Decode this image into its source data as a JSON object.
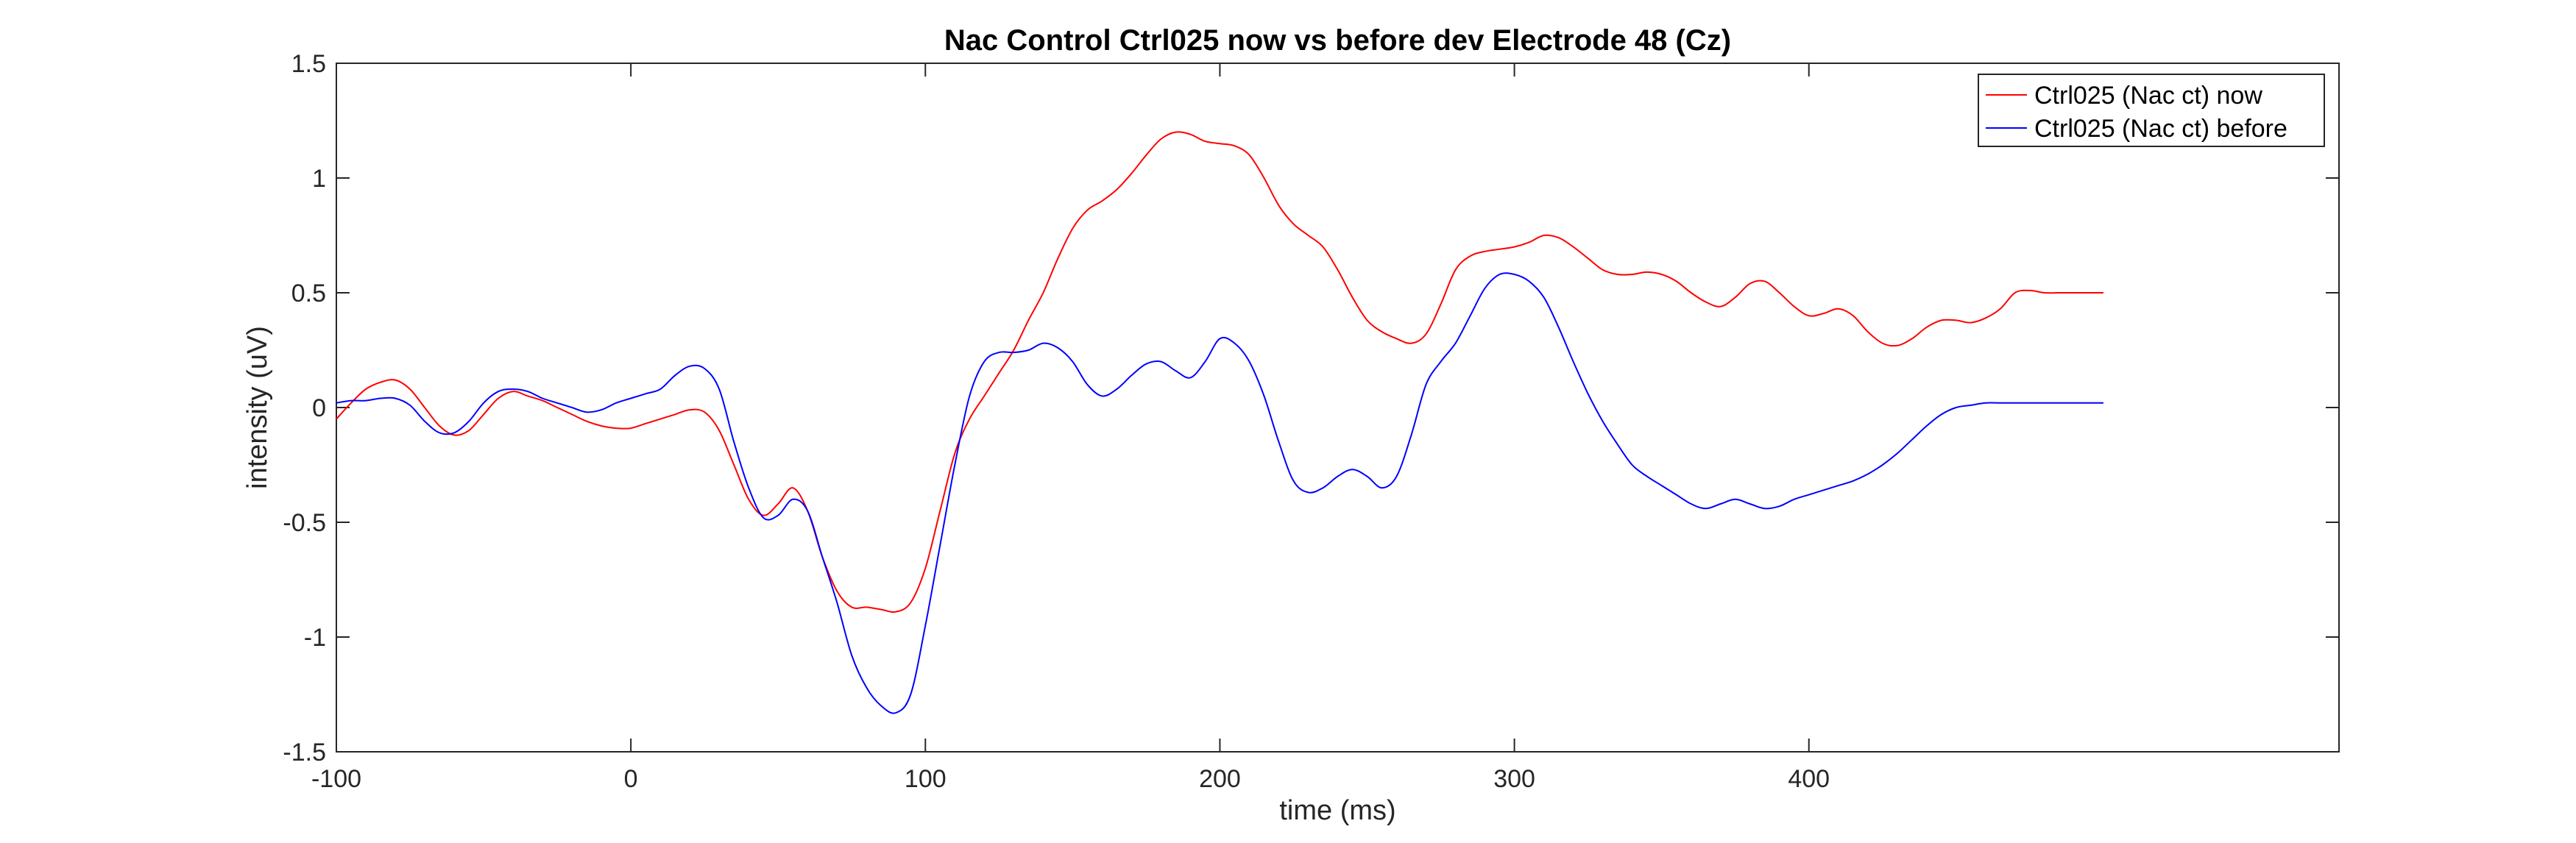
{
  "chart_data": {
    "type": "line",
    "title": "Nac Control Ctrl025 now vs before dev Electrode 48 (Cz)",
    "xlabel": "time (ms)",
    "ylabel": "intensity (uV)",
    "xlim": [
      -100,
      580
    ],
    "ylim": [
      -1.5,
      1.5
    ],
    "xticks": [
      -100,
      0,
      100,
      200,
      300,
      400
    ],
    "yticks": [
      -1.5,
      -1,
      -0.5,
      0,
      0.5,
      1,
      1.5
    ],
    "ytick_labels": [
      "-1.5",
      "-1",
      "-0.5",
      "0",
      "0.5",
      "1",
      "1.5"
    ],
    "grid": false,
    "legend_position": "top-right",
    "series": [
      {
        "name": "Ctrl025 (Nac ct) now",
        "color": "#ff0000",
        "x": [
          -100,
          -95,
          -90,
          -85,
          -80,
          -75,
          -70,
          -65,
          -60,
          -55,
          -50,
          -45,
          -40,
          -35,
          -30,
          -25,
          -20,
          -15,
          -10,
          -5,
          0,
          5,
          10,
          15,
          20,
          25,
          30,
          35,
          40,
          45,
          50,
          55,
          60,
          65,
          70,
          75,
          80,
          85,
          90,
          95,
          100,
          105,
          110,
          115,
          120,
          125,
          130,
          135,
          140,
          145,
          150,
          155,
          160,
          165,
          170,
          175,
          180,
          185,
          190,
          195,
          200,
          205,
          210,
          215,
          220,
          225,
          230,
          235,
          240,
          245,
          250,
          255,
          260,
          265,
          270,
          275,
          280,
          285,
          290,
          295,
          300,
          305,
          310,
          315,
          320,
          325,
          330,
          335,
          340,
          345,
          350,
          355,
          360,
          365,
          370,
          375,
          380,
          385,
          390,
          395,
          400,
          405,
          410,
          415,
          420,
          425,
          430,
          435,
          440,
          445,
          450,
          455,
          460,
          465,
          470,
          475,
          480,
          485,
          490,
          495,
          500
        ],
        "y": [
          -0.05,
          0.02,
          0.08,
          0.11,
          0.12,
          0.08,
          0.0,
          -0.08,
          -0.12,
          -0.1,
          -0.03,
          0.04,
          0.07,
          0.05,
          0.03,
          0.0,
          -0.03,
          -0.06,
          -0.08,
          -0.09,
          -0.09,
          -0.07,
          -0.05,
          -0.03,
          -0.01,
          -0.02,
          -0.1,
          -0.25,
          -0.4,
          -0.47,
          -0.42,
          -0.35,
          -0.45,
          -0.65,
          -0.8,
          -0.87,
          -0.87,
          -0.88,
          -0.89,
          -0.85,
          -0.7,
          -0.45,
          -0.2,
          -0.05,
          0.05,
          0.15,
          0.25,
          0.38,
          0.5,
          0.65,
          0.78,
          0.86,
          0.9,
          0.95,
          1.02,
          1.1,
          1.17,
          1.2,
          1.19,
          1.16,
          1.15,
          1.14,
          1.1,
          1.0,
          0.88,
          0.8,
          0.75,
          0.7,
          0.6,
          0.48,
          0.38,
          0.33,
          0.3,
          0.28,
          0.32,
          0.45,
          0.6,
          0.66,
          0.68,
          0.69,
          0.7,
          0.72,
          0.75,
          0.74,
          0.7,
          0.65,
          0.6,
          0.58,
          0.58,
          0.59,
          0.58,
          0.55,
          0.5,
          0.46,
          0.44,
          0.48,
          0.54,
          0.55,
          0.5,
          0.44,
          0.4,
          0.41,
          0.43,
          0.4,
          0.33,
          0.28,
          0.27,
          0.3,
          0.35,
          0.38,
          0.38,
          0.37,
          0.39,
          0.43,
          0.5,
          0.51,
          0.5,
          0.5,
          0.5,
          0.5,
          0.5
        ]
      },
      {
        "name": "Ctrl025 (Nac ct) before",
        "color": "#0000ff",
        "x": [
          -100,
          -95,
          -90,
          -85,
          -80,
          -75,
          -70,
          -65,
          -60,
          -55,
          -50,
          -45,
          -40,
          -35,
          -30,
          -25,
          -20,
          -15,
          -10,
          -5,
          0,
          5,
          10,
          15,
          20,
          25,
          30,
          35,
          40,
          45,
          50,
          55,
          60,
          65,
          70,
          75,
          80,
          85,
          90,
          95,
          100,
          105,
          110,
          115,
          120,
          125,
          130,
          135,
          140,
          145,
          150,
          155,
          160,
          165,
          170,
          175,
          180,
          185,
          190,
          195,
          200,
          205,
          210,
          215,
          220,
          225,
          230,
          235,
          240,
          245,
          250,
          255,
          260,
          265,
          270,
          275,
          280,
          285,
          290,
          295,
          300,
          305,
          310,
          315,
          320,
          325,
          330,
          335,
          340,
          345,
          350,
          355,
          360,
          365,
          370,
          375,
          380,
          385,
          390,
          395,
          400,
          405,
          410,
          415,
          420,
          425,
          430,
          435,
          440,
          445,
          450,
          455,
          460,
          465,
          470,
          475,
          480,
          485,
          490,
          495,
          500
        ],
        "y": [
          0.02,
          0.03,
          0.03,
          0.04,
          0.04,
          0.01,
          -0.06,
          -0.11,
          -0.11,
          -0.06,
          0.02,
          0.07,
          0.08,
          0.07,
          0.04,
          0.02,
          0.0,
          -0.02,
          -0.01,
          0.02,
          0.04,
          0.06,
          0.08,
          0.14,
          0.18,
          0.17,
          0.08,
          -0.15,
          -0.35,
          -0.48,
          -0.47,
          -0.4,
          -0.45,
          -0.65,
          -0.85,
          -1.08,
          -1.22,
          -1.3,
          -1.33,
          -1.25,
          -0.95,
          -0.6,
          -0.25,
          0.05,
          0.2,
          0.24,
          0.24,
          0.25,
          0.28,
          0.26,
          0.2,
          0.1,
          0.05,
          0.08,
          0.14,
          0.19,
          0.2,
          0.16,
          0.13,
          0.2,
          0.3,
          0.28,
          0.2,
          0.05,
          -0.15,
          -0.32,
          -0.37,
          -0.35,
          -0.3,
          -0.27,
          -0.3,
          -0.35,
          -0.3,
          -0.12,
          0.1,
          0.2,
          0.28,
          0.4,
          0.52,
          0.58,
          0.58,
          0.55,
          0.48,
          0.35,
          0.2,
          0.06,
          -0.06,
          -0.16,
          -0.25,
          -0.3,
          -0.34,
          -0.38,
          -0.42,
          -0.44,
          -0.42,
          -0.4,
          -0.42,
          -0.44,
          -0.43,
          -0.4,
          -0.38,
          -0.36,
          -0.34,
          -0.32,
          -0.29,
          -0.25,
          -0.2,
          -0.14,
          -0.08,
          -0.03,
          0.0,
          0.01,
          0.02,
          0.02,
          0.02,
          0.02,
          0.02,
          0.02,
          0.02,
          0.02,
          0.02
        ]
      }
    ]
  }
}
